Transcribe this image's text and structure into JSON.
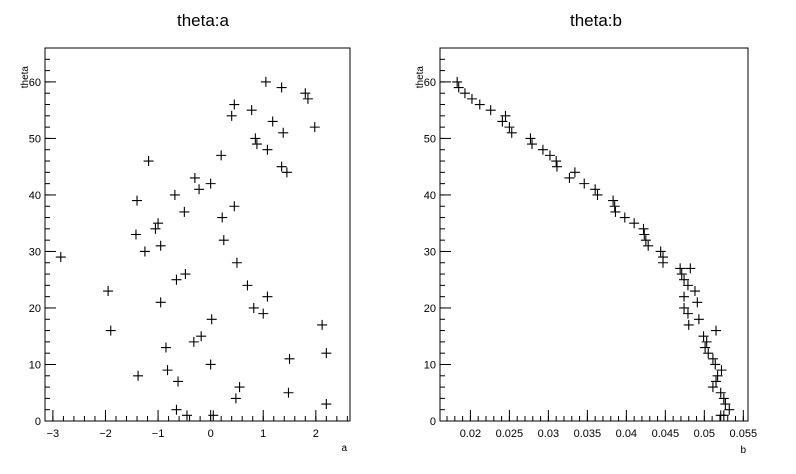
{
  "chart_data": [
    {
      "type": "scatter",
      "title": "theta:a",
      "xlabel": "a",
      "ylabel": "theta",
      "marker": "+",
      "xlim": [
        -3.15,
        2.65
      ],
      "ylim": [
        0,
        66
      ],
      "x_ticks": [
        -3,
        -2,
        -1,
        0,
        1,
        2
      ],
      "x_tick_labels": [
        "−3",
        "−2",
        "−1",
        "0",
        "1",
        "2"
      ],
      "y_ticks": [
        0,
        10,
        20,
        30,
        40,
        50,
        60
      ],
      "y_tick_labels": [
        "0",
        "10",
        "20",
        "30",
        "40",
        "50",
        "60"
      ],
      "points": [
        [
          -2.85,
          29
        ],
        [
          -1.95,
          23
        ],
        [
          -1.9,
          16
        ],
        [
          -1.4,
          39
        ],
        [
          -1.42,
          33
        ],
        [
          -1.38,
          8
        ],
        [
          -1.25,
          30
        ],
        [
          -1.18,
          46
        ],
        [
          -1.05,
          34
        ],
        [
          -1.0,
          35
        ],
        [
          -0.95,
          31
        ],
        [
          -0.95,
          21
        ],
        [
          -0.85,
          13
        ],
        [
          -0.82,
          9
        ],
        [
          -0.68,
          40
        ],
        [
          -0.65,
          25
        ],
        [
          -0.62,
          7
        ],
        [
          -0.65,
          2
        ],
        [
          -0.5,
          37
        ],
        [
          -0.48,
          26
        ],
        [
          -0.45,
          1
        ],
        [
          -0.3,
          43
        ],
        [
          -0.32,
          14
        ],
        [
          -0.22,
          41
        ],
        [
          -0.18,
          15
        ],
        [
          0.0,
          42
        ],
        [
          0.0,
          10
        ],
        [
          0.02,
          18
        ],
        [
          0.05,
          1
        ],
        [
          0.2,
          47
        ],
        [
          0.22,
          36
        ],
        [
          0.25,
          32
        ],
        [
          0.4,
          54
        ],
        [
          0.45,
          56
        ],
        [
          0.45,
          38
        ],
        [
          0.5,
          28
        ],
        [
          0.48,
          4
        ],
        [
          0.55,
          6
        ],
        [
          0.7,
          24
        ],
        [
          0.78,
          55
        ],
        [
          0.85,
          50
        ],
        [
          0.88,
          49
        ],
        [
          0.82,
          20
        ],
        [
          1.0,
          19
        ],
        [
          1.05,
          60
        ],
        [
          1.08,
          48
        ],
        [
          1.08,
          22
        ],
        [
          1.18,
          53
        ],
        [
          1.35,
          59
        ],
        [
          1.35,
          45
        ],
        [
          1.38,
          51
        ],
        [
          1.45,
          44
        ],
        [
          1.5,
          11
        ],
        [
          1.48,
          5
        ],
        [
          1.8,
          58
        ],
        [
          1.85,
          57
        ],
        [
          1.98,
          52
        ],
        [
          2.12,
          17
        ],
        [
          2.2,
          12
        ],
        [
          2.2,
          3
        ]
      ]
    },
    {
      "type": "scatter",
      "title": "theta:b",
      "xlabel": "b",
      "ylabel": "theta",
      "marker": "+",
      "xlim": [
        0.0161,
        0.0556
      ],
      "ylim": [
        0,
        66
      ],
      "x_ticks": [
        0.02,
        0.025,
        0.03,
        0.035,
        0.04,
        0.045,
        0.05,
        0.055
      ],
      "x_tick_labels": [
        "0.02",
        "0.025",
        "0.03",
        "0.035",
        "0.04",
        "0.045",
        "0.05",
        "0.055"
      ],
      "y_ticks": [
        0,
        10,
        20,
        30,
        40,
        50,
        60
      ],
      "y_tick_labels": [
        "0",
        "10",
        "20",
        "30",
        "40",
        "50",
        "60"
      ],
      "points": [
        [
          0.0183,
          60
        ],
        [
          0.0185,
          59
        ],
        [
          0.0193,
          58
        ],
        [
          0.0202,
          57
        ],
        [
          0.0212,
          56
        ],
        [
          0.0226,
          55
        ],
        [
          0.0241,
          53
        ],
        [
          0.0245,
          54
        ],
        [
          0.025,
          52
        ],
        [
          0.0253,
          51
        ],
        [
          0.0277,
          50
        ],
        [
          0.0279,
          49
        ],
        [
          0.0293,
          48
        ],
        [
          0.0302,
          47
        ],
        [
          0.031,
          46
        ],
        [
          0.0311,
          45
        ],
        [
          0.0334,
          44
        ],
        [
          0.0327,
          43
        ],
        [
          0.0346,
          42
        ],
        [
          0.036,
          41
        ],
        [
          0.0363,
          40
        ],
        [
          0.0383,
          39
        ],
        [
          0.0385,
          38
        ],
        [
          0.0386,
          37
        ],
        [
          0.0398,
          36
        ],
        [
          0.041,
          35
        ],
        [
          0.0422,
          34
        ],
        [
          0.0423,
          33
        ],
        [
          0.0425,
          32
        ],
        [
          0.0428,
          31
        ],
        [
          0.0444,
          30
        ],
        [
          0.0447,
          29
        ],
        [
          0.0447,
          28
        ],
        [
          0.0469,
          27
        ],
        [
          0.0471,
          26
        ],
        [
          0.0482,
          27
        ],
        [
          0.0474,
          25
        ],
        [
          0.0479,
          24
        ],
        [
          0.0488,
          23
        ],
        [
          0.0474,
          22
        ],
        [
          0.0491,
          21
        ],
        [
          0.0474,
          20
        ],
        [
          0.0479,
          19
        ],
        [
          0.0493,
          18
        ],
        [
          0.048,
          17
        ],
        [
          0.0515,
          16
        ],
        [
          0.0499,
          15
        ],
        [
          0.0503,
          14
        ],
        [
          0.0501,
          13
        ],
        [
          0.0505,
          12
        ],
        [
          0.0511,
          11
        ],
        [
          0.0514,
          10
        ],
        [
          0.0522,
          9
        ],
        [
          0.0517,
          8
        ],
        [
          0.0515,
          7
        ],
        [
          0.0511,
          6
        ],
        [
          0.0521,
          5
        ],
        [
          0.0525,
          4
        ],
        [
          0.0527,
          3
        ],
        [
          0.0532,
          2
        ],
        [
          0.0521,
          1
        ],
        [
          0.0525,
          1
        ]
      ]
    }
  ]
}
